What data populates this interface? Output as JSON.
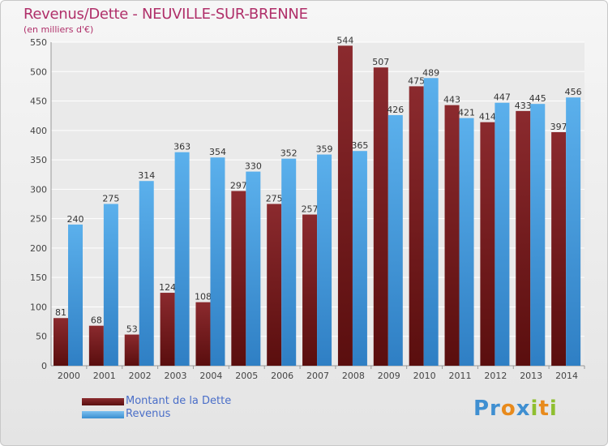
{
  "colors": {
    "debt": "#8b2a2e",
    "revenue": "#4da3e3",
    "title": "#b0306a",
    "legend_text": "#4a6ec8"
  },
  "chart_data": {
    "type": "bar",
    "title": "Revenus/Dette - NEUVILLE-SUR-BRENNE",
    "subtitle": "(en milliers d'€)",
    "xlabel": "",
    "ylabel": "",
    "ylim": [
      0,
      550
    ],
    "yticks": [
      0,
      50,
      100,
      150,
      200,
      250,
      300,
      350,
      400,
      450,
      500,
      550
    ],
    "categories": [
      "2000",
      "2001",
      "2002",
      "2003",
      "2004",
      "2005",
      "2006",
      "2007",
      "2008",
      "2009",
      "2010",
      "2011",
      "2012",
      "2013",
      "2014"
    ],
    "series": [
      {
        "name": "Montant de la Dette",
        "values": [
          81,
          68,
          53,
          124,
          108,
          297,
          275,
          257,
          544,
          507,
          475,
          443,
          414,
          433,
          397
        ]
      },
      {
        "name": "Revenus",
        "values": [
          240,
          275,
          314,
          363,
          354,
          330,
          352,
          359,
          365,
          426,
          489,
          421,
          447,
          445,
          456
        ]
      }
    ],
    "legend": "bottom-left"
  },
  "logo": {
    "p": "Pr",
    "o": "o",
    "x": "x",
    "i": "i",
    "t": "t",
    "i2": "i"
  }
}
